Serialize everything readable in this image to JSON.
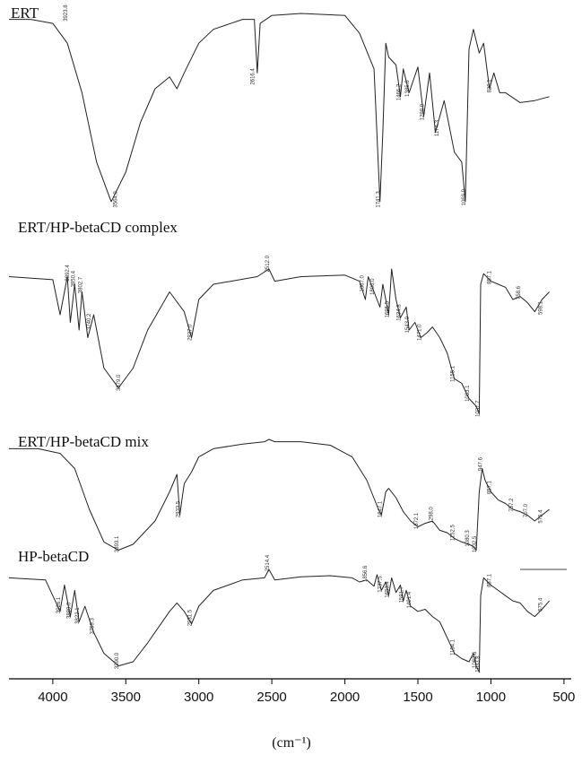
{
  "chart_data": {
    "type": "line",
    "title": "",
    "xlabel": "(cm⁻¹)",
    "ylabel": "",
    "xlim": [
      4300,
      450
    ],
    "x_ticks": [
      "4000",
      "3500",
      "3000",
      "2500",
      "2000",
      "1500",
      "1000",
      "500"
    ],
    "grid": false,
    "stacked_offset": true,
    "series": [
      {
        "name": "ERT",
        "points": [
          [
            4300,
            0.97
          ],
          [
            4150,
            0.97
          ],
          [
            4000,
            0.95
          ],
          [
            3900,
            0.85
          ],
          [
            3800,
            0.6
          ],
          [
            3700,
            0.25
          ],
          [
            3600,
            0.05
          ],
          [
            3500,
            0.2
          ],
          [
            3400,
            0.45
          ],
          [
            3300,
            0.62
          ],
          [
            3200,
            0.68
          ],
          [
            3150,
            0.62
          ],
          [
            3100,
            0.7
          ],
          [
            3000,
            0.85
          ],
          [
            2900,
            0.92
          ],
          [
            2700,
            0.97
          ],
          [
            2620,
            0.97
          ],
          [
            2600,
            0.7
          ],
          [
            2580,
            0.95
          ],
          [
            2500,
            0.99
          ],
          [
            2300,
            1.0
          ],
          [
            2000,
            0.99
          ],
          [
            1900,
            0.9
          ],
          [
            1800,
            0.72
          ],
          [
            1760,
            0.05
          ],
          [
            1740,
            0.4
          ],
          [
            1720,
            0.85
          ],
          [
            1700,
            0.78
          ],
          [
            1650,
            0.74
          ],
          [
            1620,
            0.58
          ],
          [
            1600,
            0.72
          ],
          [
            1560,
            0.6
          ],
          [
            1500,
            0.73
          ],
          [
            1460,
            0.48
          ],
          [
            1420,
            0.7
          ],
          [
            1380,
            0.4
          ],
          [
            1320,
            0.56
          ],
          [
            1250,
            0.3
          ],
          [
            1200,
            0.25
          ],
          [
            1175,
            0.05
          ],
          [
            1150,
            0.82
          ],
          [
            1120,
            0.92
          ],
          [
            1080,
            0.8
          ],
          [
            1050,
            0.85
          ],
          [
            1010,
            0.62
          ],
          [
            980,
            0.7
          ],
          [
            940,
            0.6
          ],
          [
            900,
            0.6
          ],
          [
            800,
            0.55
          ],
          [
            700,
            0.56
          ],
          [
            600,
            0.58
          ]
        ],
        "peak_labels": [
          {
            "x": 3900,
            "y": 0.96,
            "text": "3923.8"
          },
          {
            "x": 3560,
            "y": 0.02,
            "text": "3564.0"
          },
          {
            "x": 2620,
            "y": 0.64,
            "text": "2616.4"
          },
          {
            "x": 1760,
            "y": 0.02,
            "text": "1741.3"
          },
          {
            "x": 1620,
            "y": 0.56,
            "text": "1466.2"
          },
          {
            "x": 1560,
            "y": 0.58,
            "text": "1385.6"
          },
          {
            "x": 1460,
            "y": 0.46,
            "text": "1298.0"
          },
          {
            "x": 1360,
            "y": 0.38,
            "text": "1174.3"
          },
          {
            "x": 1175,
            "y": 0.03,
            "text": "1069.0"
          },
          {
            "x": 1000,
            "y": 0.6,
            "text": "820.1"
          }
        ]
      },
      {
        "name": "ERT/HP-betaCD complex",
        "points": [
          [
            4300,
            0.95
          ],
          [
            4000,
            0.93
          ],
          [
            3950,
            0.7
          ],
          [
            3900,
            0.95
          ],
          [
            3880,
            0.65
          ],
          [
            3850,
            0.9
          ],
          [
            3820,
            0.6
          ],
          [
            3800,
            0.85
          ],
          [
            3760,
            0.55
          ],
          [
            3720,
            0.7
          ],
          [
            3650,
            0.35
          ],
          [
            3550,
            0.22
          ],
          [
            3450,
            0.35
          ],
          [
            3350,
            0.6
          ],
          [
            3200,
            0.85
          ],
          [
            3100,
            0.72
          ],
          [
            3050,
            0.55
          ],
          [
            3000,
            0.8
          ],
          [
            2900,
            0.9
          ],
          [
            2600,
            0.95
          ],
          [
            2520,
            1.0
          ],
          [
            2480,
            0.92
          ],
          [
            2300,
            0.95
          ],
          [
            2000,
            0.96
          ],
          [
            1900,
            0.92
          ],
          [
            1860,
            0.8
          ],
          [
            1840,
            0.95
          ],
          [
            1800,
            0.85
          ],
          [
            1760,
            0.75
          ],
          [
            1740,
            0.9
          ],
          [
            1700,
            0.7
          ],
          [
            1680,
            1.0
          ],
          [
            1650,
            0.8
          ],
          [
            1620,
            0.68
          ],
          [
            1580,
            0.75
          ],
          [
            1560,
            0.6
          ],
          [
            1520,
            0.65
          ],
          [
            1480,
            0.55
          ],
          [
            1440,
            0.58
          ],
          [
            1400,
            0.62
          ],
          [
            1350,
            0.55
          ],
          [
            1300,
            0.45
          ],
          [
            1250,
            0.28
          ],
          [
            1200,
            0.25
          ],
          [
            1150,
            0.15
          ],
          [
            1100,
            0.1
          ],
          [
            1080,
            0.05
          ],
          [
            1070,
            0.9
          ],
          [
            1050,
            0.97
          ],
          [
            1000,
            0.92
          ],
          [
            950,
            0.9
          ],
          [
            900,
            0.88
          ],
          [
            850,
            0.8
          ],
          [
            800,
            0.82
          ],
          [
            750,
            0.78
          ],
          [
            700,
            0.72
          ],
          [
            650,
            0.8
          ],
          [
            600,
            0.85
          ]
        ],
        "peak_labels": [
          {
            "x": 3890,
            "y": 0.92,
            "text": "3892.4"
          },
          {
            "x": 3850,
            "y": 0.88,
            "text": "3850.4"
          },
          {
            "x": 3800,
            "y": 0.84,
            "text": "3802.7"
          },
          {
            "x": 3740,
            "y": 0.6,
            "text": "3740.2"
          },
          {
            "x": 3540,
            "y": 0.2,
            "text": "3379.0"
          },
          {
            "x": 3050,
            "y": 0.53,
            "text": "2937.0"
          },
          {
            "x": 2520,
            "y": 0.98,
            "text": "2512.0"
          },
          {
            "x": 1870,
            "y": 0.85,
            "text": "1867.0"
          },
          {
            "x": 1800,
            "y": 0.83,
            "text": "1806.0"
          },
          {
            "x": 1700,
            "y": 0.68,
            "text": "1695.5"
          },
          {
            "x": 1620,
            "y": 0.66,
            "text": "1634.8"
          },
          {
            "x": 1560,
            "y": 0.58,
            "text": "1543.0"
          },
          {
            "x": 1480,
            "y": 0.53,
            "text": "1471.0"
          },
          {
            "x": 1250,
            "y": 0.26,
            "text": "1155.1"
          },
          {
            "x": 1150,
            "y": 0.13,
            "text": "1083.1"
          },
          {
            "x": 1080,
            "y": 0.03,
            "text": "1031.7"
          },
          {
            "x": 1000,
            "y": 0.9,
            "text": "857.1"
          },
          {
            "x": 800,
            "y": 0.8,
            "text": "758.6"
          },
          {
            "x": 650,
            "y": 0.7,
            "text": "598.1"
          }
        ]
      },
      {
        "name": "ERT/HP-betaCD mix",
        "points": [
          [
            4300,
            0.92
          ],
          [
            4100,
            0.92
          ],
          [
            3950,
            0.88
          ],
          [
            3850,
            0.75
          ],
          [
            3750,
            0.4
          ],
          [
            3650,
            0.12
          ],
          [
            3550,
            0.05
          ],
          [
            3450,
            0.1
          ],
          [
            3300,
            0.3
          ],
          [
            3200,
            0.55
          ],
          [
            3150,
            0.7
          ],
          [
            3130,
            0.35
          ],
          [
            3100,
            0.62
          ],
          [
            3050,
            0.72
          ],
          [
            3000,
            0.85
          ],
          [
            2900,
            0.92
          ],
          [
            2700,
            0.96
          ],
          [
            2550,
            0.98
          ],
          [
            2520,
            1.0
          ],
          [
            2480,
            0.98
          ],
          [
            2300,
            0.98
          ],
          [
            2100,
            0.95
          ],
          [
            1950,
            0.85
          ],
          [
            1850,
            0.65
          ],
          [
            1770,
            0.4
          ],
          [
            1750,
            0.35
          ],
          [
            1720,
            0.55
          ],
          [
            1700,
            0.58
          ],
          [
            1650,
            0.5
          ],
          [
            1600,
            0.38
          ],
          [
            1550,
            0.3
          ],
          [
            1500,
            0.25
          ],
          [
            1450,
            0.28
          ],
          [
            1400,
            0.3
          ],
          [
            1350,
            0.22
          ],
          [
            1300,
            0.2
          ],
          [
            1250,
            0.15
          ],
          [
            1200,
            0.12
          ],
          [
            1150,
            0.1
          ],
          [
            1120,
            0.08
          ],
          [
            1100,
            0.05
          ],
          [
            1080,
            0.55
          ],
          [
            1060,
            0.75
          ],
          [
            1040,
            0.65
          ],
          [
            1000,
            0.55
          ],
          [
            950,
            0.48
          ],
          [
            900,
            0.45
          ],
          [
            850,
            0.4
          ],
          [
            800,
            0.38
          ],
          [
            750,
            0.35
          ],
          [
            700,
            0.3
          ],
          [
            650,
            0.35
          ],
          [
            600,
            0.4
          ]
        ],
        "peak_labels": [
          {
            "x": 3550,
            "y": 0.03,
            "text": "3393.1"
          },
          {
            "x": 3130,
            "y": 0.33,
            "text": "2933.5"
          },
          {
            "x": 1750,
            "y": 0.33,
            "text": "1647.1"
          },
          {
            "x": 1500,
            "y": 0.23,
            "text": "1372.1"
          },
          {
            "x": 1400,
            "y": 0.28,
            "text": "1298.0"
          },
          {
            "x": 1250,
            "y": 0.13,
            "text": "1152.5"
          },
          {
            "x": 1150,
            "y": 0.08,
            "text": "1080.3"
          },
          {
            "x": 1100,
            "y": 0.03,
            "text": "1032.5"
          },
          {
            "x": 1060,
            "y": 0.73,
            "text": "947.6"
          },
          {
            "x": 1000,
            "y": 0.53,
            "text": "857.1"
          },
          {
            "x": 850,
            "y": 0.38,
            "text": "757.2"
          },
          {
            "x": 750,
            "y": 0.33,
            "text": "707.0"
          },
          {
            "x": 650,
            "y": 0.28,
            "text": "575.4"
          }
        ]
      },
      {
        "name": "HP-betaCD",
        "points": [
          [
            4300,
            0.92
          ],
          [
            4050,
            0.9
          ],
          [
            3950,
            0.6
          ],
          [
            3920,
            0.85
          ],
          [
            3880,
            0.55
          ],
          [
            3850,
            0.8
          ],
          [
            3820,
            0.5
          ],
          [
            3780,
            0.65
          ],
          [
            3720,
            0.4
          ],
          [
            3650,
            0.2
          ],
          [
            3550,
            0.08
          ],
          [
            3450,
            0.12
          ],
          [
            3350,
            0.3
          ],
          [
            3200,
            0.6
          ],
          [
            3150,
            0.68
          ],
          [
            3100,
            0.6
          ],
          [
            3050,
            0.48
          ],
          [
            3000,
            0.65
          ],
          [
            2900,
            0.8
          ],
          [
            2700,
            0.9
          ],
          [
            2550,
            0.92
          ],
          [
            2520,
            1.0
          ],
          [
            2480,
            0.9
          ],
          [
            2300,
            0.93
          ],
          [
            2100,
            0.94
          ],
          [
            1950,
            0.92
          ],
          [
            1900,
            0.88
          ],
          [
            1850,
            0.9
          ],
          [
            1800,
            0.84
          ],
          [
            1780,
            0.95
          ],
          [
            1750,
            0.8
          ],
          [
            1720,
            0.88
          ],
          [
            1700,
            0.75
          ],
          [
            1680,
            0.92
          ],
          [
            1650,
            0.78
          ],
          [
            1620,
            0.85
          ],
          [
            1600,
            0.7
          ],
          [
            1580,
            0.8
          ],
          [
            1550,
            0.65
          ],
          [
            1500,
            0.6
          ],
          [
            1450,
            0.62
          ],
          [
            1400,
            0.55
          ],
          [
            1350,
            0.5
          ],
          [
            1300,
            0.35
          ],
          [
            1250,
            0.2
          ],
          [
            1200,
            0.15
          ],
          [
            1150,
            0.12
          ],
          [
            1120,
            0.2
          ],
          [
            1100,
            0.08
          ],
          [
            1080,
            0.02
          ],
          [
            1070,
            0.75
          ],
          [
            1050,
            0.92
          ],
          [
            1000,
            0.85
          ],
          [
            950,
            0.8
          ],
          [
            900,
            0.75
          ],
          [
            850,
            0.7
          ],
          [
            800,
            0.68
          ],
          [
            750,
            0.6
          ],
          [
            700,
            0.55
          ],
          [
            650,
            0.62
          ],
          [
            600,
            0.7
          ]
        ],
        "peak_labels": [
          {
            "x": 3950,
            "y": 0.58,
            "text": "3926.1"
          },
          {
            "x": 3880,
            "y": 0.53,
            "text": "3880.0"
          },
          {
            "x": 3820,
            "y": 0.48,
            "text": "3822.1"
          },
          {
            "x": 3720,
            "y": 0.38,
            "text": "3759.3"
          },
          {
            "x": 3550,
            "y": 0.05,
            "text": "3390.0"
          },
          {
            "x": 3050,
            "y": 0.46,
            "text": "2931.5"
          },
          {
            "x": 2520,
            "y": 0.98,
            "text": "2514.4"
          },
          {
            "x": 1850,
            "y": 0.88,
            "text": "1856.6"
          },
          {
            "x": 1750,
            "y": 0.78,
            "text": "1737.5"
          },
          {
            "x": 1700,
            "y": 0.73,
            "text": "1653.4"
          },
          {
            "x": 1600,
            "y": 0.68,
            "text": "1581.7"
          },
          {
            "x": 1550,
            "y": 0.63,
            "text": "1491.4"
          },
          {
            "x": 1250,
            "y": 0.18,
            "text": "1154.1"
          },
          {
            "x": 1100,
            "y": 0.06,
            "text": "1082.6"
          },
          {
            "x": 1080,
            "y": 0.02,
            "text": "1033.8"
          },
          {
            "x": 1000,
            "y": 0.83,
            "text": "857.1"
          },
          {
            "x": 650,
            "y": 0.6,
            "text": "575.4"
          }
        ]
      }
    ]
  }
}
